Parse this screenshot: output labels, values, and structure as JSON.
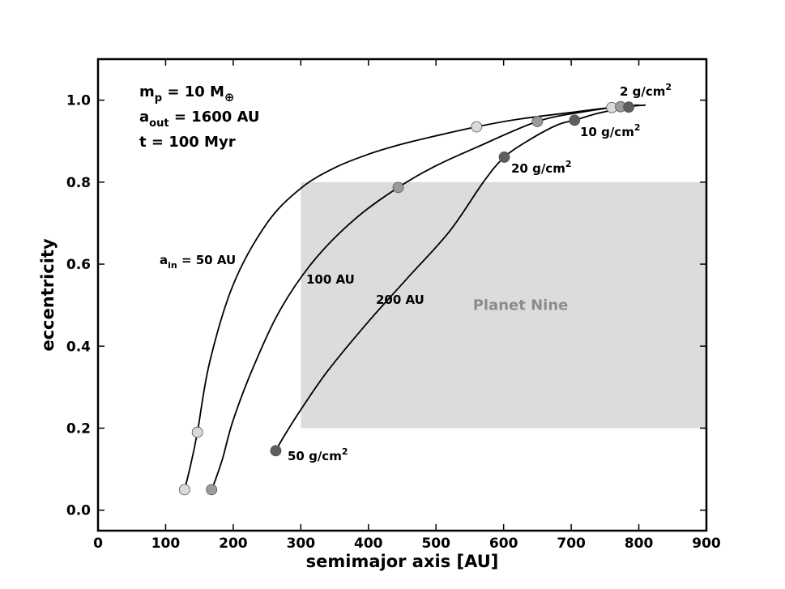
{
  "chart_data": {
    "type": "line",
    "xlabel": "semimajor axis [AU]",
    "ylabel": "eccentricity",
    "xlim": [
      0,
      900
    ],
    "ylim": [
      -0.05,
      1.1
    ],
    "xticks": [
      0,
      100,
      200,
      300,
      400,
      500,
      600,
      700,
      800,
      900
    ],
    "yticks": [
      0.0,
      0.2,
      0.4,
      0.6,
      0.8,
      1.0
    ],
    "ytick_labels": [
      "0.0",
      "0.2",
      "0.4",
      "0.6",
      "0.8",
      "1.0"
    ],
    "grid": false,
    "parameters": {
      "mass_label": "m",
      "mass_sub": "p",
      "mass_value": " = 10 M",
      "mass_symbol": "⊕",
      "aout_label": "a",
      "aout_sub": "out",
      "aout_value": " = 1600 AU",
      "time_text": "t = 100 Myr"
    },
    "region": {
      "label": "Planet Nine",
      "x": [
        300,
        900
      ],
      "y": [
        0.2,
        0.8
      ],
      "color": "#dcdcdc"
    },
    "series": [
      {
        "label_main": "a",
        "label_sub": "in",
        "label_rest": " = 50 AU",
        "x": [
          128,
          137,
          147,
          165,
          200,
          250,
          300,
          350,
          400,
          450,
          500,
          560,
          620,
          700,
          760,
          810
        ],
        "y": [
          0.05,
          0.11,
          0.19,
          0.36,
          0.55,
          0.7,
          0.785,
          0.835,
          0.868,
          0.893,
          0.913,
          0.935,
          0.953,
          0.97,
          0.982,
          0.988
        ]
      },
      {
        "label": "100 AU",
        "x": [
          168,
          175,
          185,
          200,
          230,
          270,
          320,
          380,
          444,
          500,
          560,
          650,
          720,
          770,
          800
        ],
        "y": [
          0.05,
          0.08,
          0.13,
          0.22,
          0.35,
          0.49,
          0.61,
          0.71,
          0.787,
          0.84,
          0.885,
          0.948,
          0.972,
          0.984,
          0.988
        ]
      },
      {
        "label": "200 AU",
        "x": [
          263,
          275,
          300,
          340,
          400,
          460,
          520,
          570,
          601,
          640,
          680,
          705,
          740,
          785,
          800
        ],
        "y": [
          0.145,
          0.18,
          0.245,
          0.34,
          0.46,
          0.57,
          0.68,
          0.8,
          0.861,
          0.905,
          0.94,
          0.951,
          0.968,
          0.983,
          0.988
        ]
      }
    ],
    "markers": [
      {
        "series": 0,
        "x": 128,
        "y": 0.05,
        "color": "#dadada",
        "group": "50 g/cm2"
      },
      {
        "series": 0,
        "x": 147,
        "y": 0.19,
        "color": "#dadada",
        "group": "50 g/cm2"
      },
      {
        "series": 0,
        "x": 560,
        "y": 0.935,
        "color": "#dadada",
        "group": "20 g/cm2"
      },
      {
        "series": 0,
        "x": 760,
        "y": 0.982,
        "color": "#dadada",
        "group": "2 g/cm2"
      },
      {
        "series": 1,
        "x": 168,
        "y": 0.05,
        "color": "#9a9a9a",
        "group": "50 g/cm2"
      },
      {
        "series": 1,
        "x": 444,
        "y": 0.787,
        "color": "#9a9a9a",
        "group": "20 g/cm2"
      },
      {
        "series": 1,
        "x": 650,
        "y": 0.948,
        "color": "#9a9a9a",
        "group": "10 g/cm2"
      },
      {
        "series": 1,
        "x": 773,
        "y": 0.984,
        "color": "#9a9a9a",
        "group": "2 g/cm2"
      },
      {
        "series": 2,
        "x": 263,
        "y": 0.145,
        "color": "#5e5e5e",
        "group": "50 g/cm2"
      },
      {
        "series": 2,
        "x": 601,
        "y": 0.861,
        "color": "#5e5e5e",
        "group": "20 g/cm2"
      },
      {
        "series": 2,
        "x": 705,
        "y": 0.951,
        "color": "#5e5e5e",
        "group": "10 g/cm2"
      },
      {
        "series": 2,
        "x": 785,
        "y": 0.983,
        "color": "#5e5e5e",
        "group": "2 g/cm2"
      }
    ],
    "annotations": {
      "sd_2": "2 g/cm",
      "sd_10": "10 g/cm",
      "sd_20": "20 g/cm",
      "sd_50": "50 g/cm",
      "sup": "2"
    }
  }
}
